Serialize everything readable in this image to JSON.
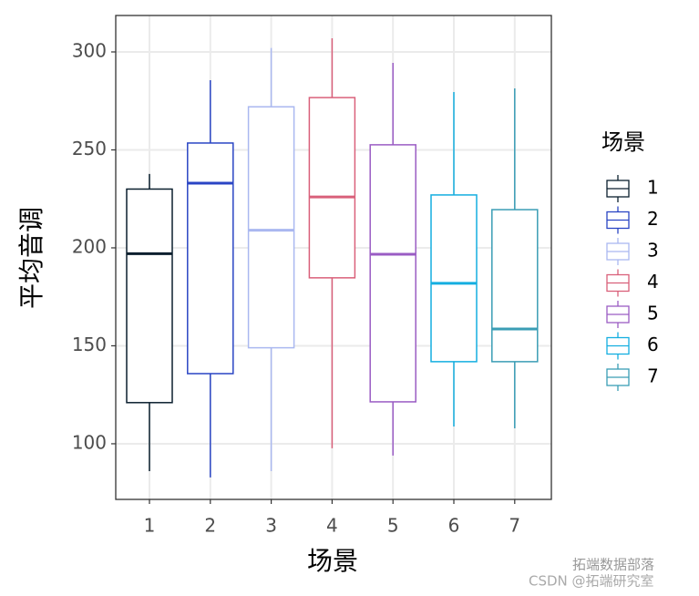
{
  "chart_data": {
    "type": "box",
    "x_label": "场景",
    "y_label": "平均音调",
    "legend_title": "场景",
    "categories": [
      "1",
      "2",
      "3",
      "4",
      "5",
      "6",
      "7"
    ],
    "series": [
      {
        "name": "1",
        "color": "#0b1f2e",
        "min": 86,
        "q1": 121,
        "median": 197,
        "q3": 230,
        "max": 237.7
      },
      {
        "name": "2",
        "color": "#2a45c4",
        "min": 82.8,
        "q1": 135.8,
        "median": 233,
        "q3": 253.5,
        "max": 285.6
      },
      {
        "name": "3",
        "color": "#aab8f0",
        "min": 86,
        "q1": 149,
        "median": 209,
        "q3": 272,
        "max": 302
      },
      {
        "name": "4",
        "color": "#d9607a",
        "min": 97.7,
        "q1": 184.7,
        "median": 226,
        "q3": 276.7,
        "max": 307
      },
      {
        "name": "5",
        "color": "#9a5cc4",
        "min": 94,
        "q1": 121.4,
        "median": 196.7,
        "q3": 252.6,
        "max": 294.4
      },
      {
        "name": "6",
        "color": "#14aee0",
        "min": 108.8,
        "q1": 141.9,
        "median": 181.9,
        "q3": 227,
        "max": 279.5
      },
      {
        "name": "7",
        "color": "#3a9db5",
        "min": 107.9,
        "q1": 141.9,
        "median": 158.6,
        "q3": 219.5,
        "max": 281.4
      }
    ],
    "ylim": [
      71.6,
      318.6
    ],
    "yticks": [
      100,
      150,
      200,
      250,
      300
    ],
    "grid": true,
    "legend_position": "right",
    "watermark": [
      "拓端数据部落",
      "CSDN @拓端研究室"
    ]
  }
}
